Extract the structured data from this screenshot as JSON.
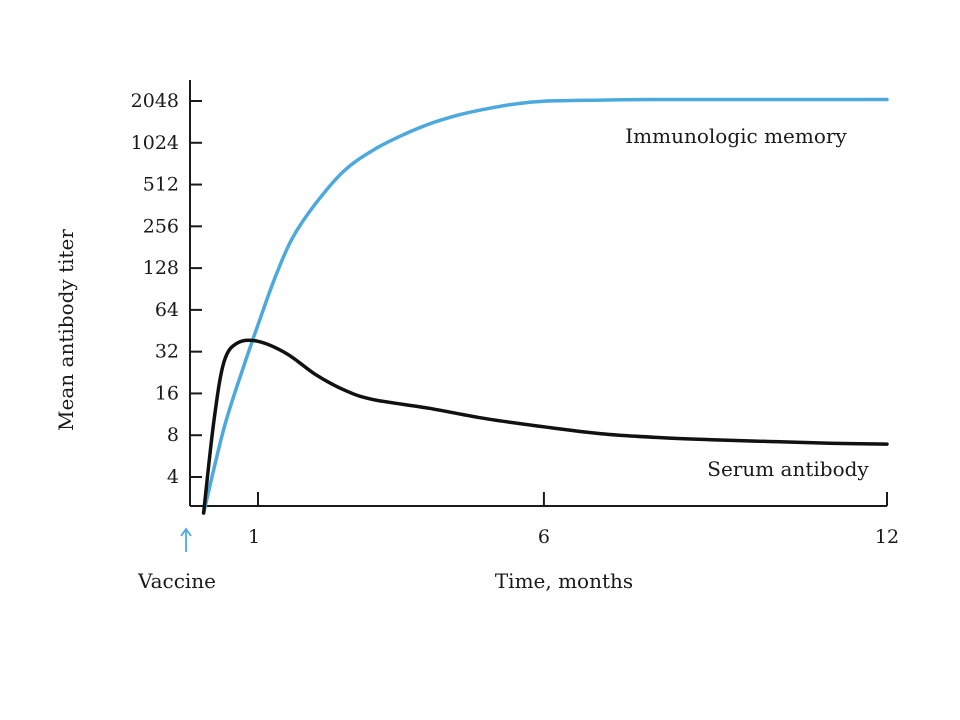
{
  "chart_data": {
    "type": "line",
    "title": "",
    "xlabel": "Time, months",
    "ylabel": "Mean antibody titer",
    "y_scale": "log2",
    "xlim": [
      0,
      12
    ],
    "ylim": [
      2.1,
      2300
    ],
    "x_ticks": [
      1,
      6,
      12
    ],
    "x_tick_labels": [
      "1",
      "6",
      "12"
    ],
    "y_ticks": [
      4,
      8,
      16,
      32,
      64,
      128,
      256,
      512,
      1024,
      2048
    ],
    "y_tick_labels": [
      "4",
      "8",
      "16",
      "32",
      "64",
      "128",
      "256",
      "512",
      "1024",
      "2048"
    ],
    "grid": false,
    "annotation": {
      "label": "Vaccine",
      "x": 0,
      "arrow": "up",
      "color": "#4ba9de"
    },
    "series": [
      {
        "name": "Immunologic memory",
        "color": "#4ba9de",
        "x": [
          0.2,
          0.5,
          0.8,
          1.0,
          1.3,
          1.6,
          2.0,
          2.5,
          3.0,
          3.5,
          4.0,
          4.5,
          5.0,
          5.5,
          6.0,
          7.0,
          8.0,
          10.0,
          12.0
        ],
        "y": [
          2.2,
          9,
          26,
          50,
          110,
          210,
          370,
          640,
          900,
          1150,
          1400,
          1620,
          1800,
          1950,
          2040,
          2080,
          2100,
          2100,
          2100
        ]
      },
      {
        "name": "Serum antibody",
        "color": "#111111",
        "x": [
          0.2,
          0.35,
          0.5,
          0.7,
          1.0,
          1.5,
          2.0,
          2.5,
          3.0,
          4.0,
          5.0,
          6.0,
          7.0,
          8.0,
          9.0,
          10.0,
          11.0,
          12.0
        ],
        "y": [
          2.2,
          10,
          27,
          37,
          38,
          31,
          22,
          17,
          14.5,
          12.5,
          10.5,
          9.2,
          8.2,
          7.7,
          7.4,
          7.2,
          7.0,
          6.9
        ]
      }
    ]
  }
}
